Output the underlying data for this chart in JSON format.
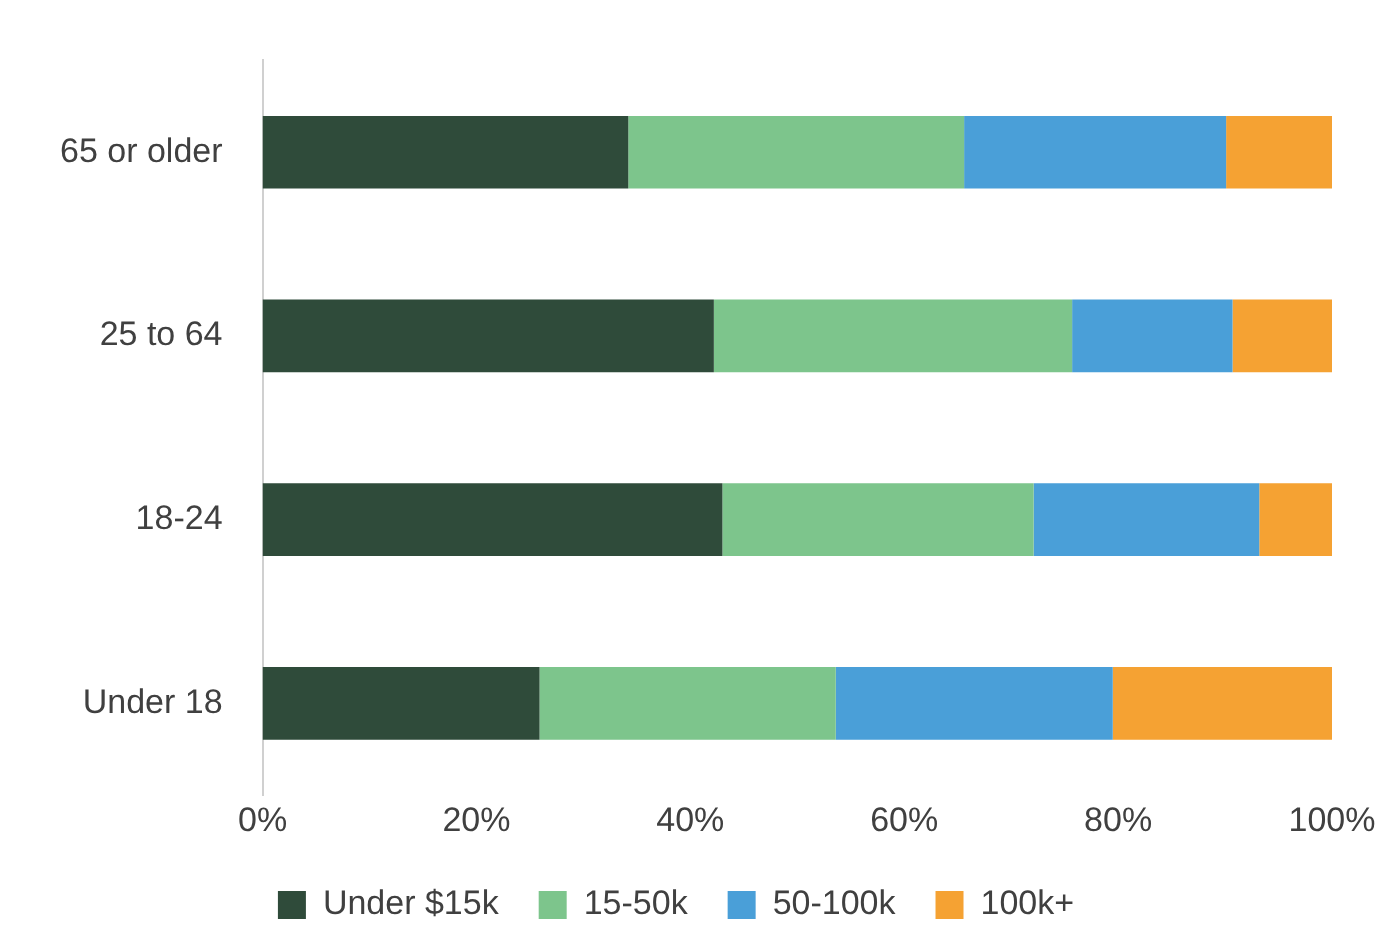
{
  "chart_data": {
    "type": "bar",
    "orientation": "horizontal",
    "stacked": true,
    "categories": [
      "65 or older",
      "25 to 64",
      "18-24",
      "Under 18"
    ],
    "series": [
      {
        "name": "Under $15k",
        "color": "#2f4b3a",
        "values": [
          34.2,
          42.2,
          43.0,
          25.9
        ]
      },
      {
        "name": "15-50k",
        "color": "#7dc58c",
        "values": [
          31.4,
          33.5,
          29.1,
          27.7
        ]
      },
      {
        "name": "50-100k",
        "color": "#4a9fd8",
        "values": [
          24.5,
          15.0,
          21.1,
          25.9
        ]
      },
      {
        "name": "100k+",
        "color": "#f5a233",
        "values": [
          9.9,
          9.3,
          6.8,
          20.5
        ]
      }
    ],
    "xlim": [
      0,
      100
    ],
    "xticks": [
      {
        "value": 0,
        "label": "0%"
      },
      {
        "value": 20,
        "label": "20%"
      },
      {
        "value": 40,
        "label": "40%"
      },
      {
        "value": 60,
        "label": "60%"
      },
      {
        "value": 80,
        "label": "80%"
      },
      {
        "value": 100,
        "label": "100%"
      }
    ],
    "grid": false,
    "legend": "bottom"
  }
}
